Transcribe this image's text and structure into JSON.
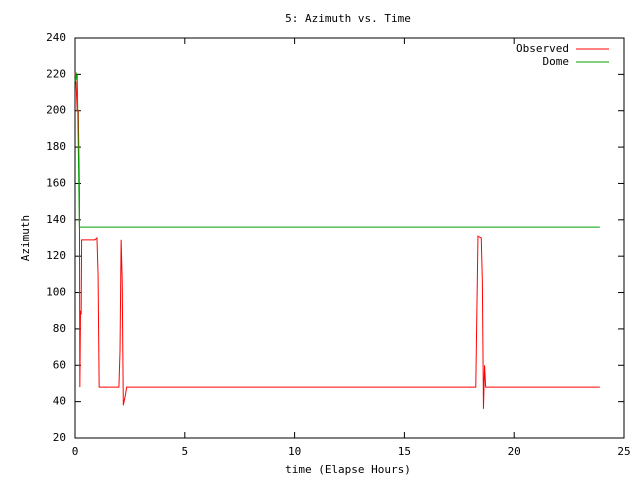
{
  "chart_data": {
    "type": "line",
    "title": "5: Azimuth vs. Time",
    "xlabel": "time (Elapse Hours)",
    "ylabel": "Azimuth",
    "xlim": [
      0,
      25
    ],
    "xticks": [
      0,
      5,
      10,
      15,
      20,
      25
    ],
    "ylim": [
      20,
      240
    ],
    "yticks": [
      20,
      40,
      60,
      80,
      100,
      120,
      140,
      160,
      180,
      200,
      220,
      240
    ],
    "legend": "top-right",
    "series": [
      {
        "name": "Observed",
        "color": "#ff0000",
        "x": [
          0,
          0.05,
          0.1,
          0.15,
          0.2,
          0.22,
          0.25,
          0.28,
          0.3,
          0.9,
          1.0,
          1.05,
          1.1,
          2.0,
          2.05,
          2.1,
          2.15,
          2.2,
          2.3,
          2.35,
          18.25,
          18.3,
          18.35,
          18.5,
          18.55,
          18.6,
          18.65,
          18.7,
          23.9
        ],
        "values": [
          221,
          215,
          200,
          200,
          155,
          48,
          90,
          88,
          129,
          129,
          130,
          110,
          48,
          48,
          68,
          129,
          106,
          38,
          44,
          48,
          48,
          90,
          131,
          130,
          106,
          36,
          60,
          48,
          48
        ]
      },
      {
        "name": "Dome",
        "color": "#00a000",
        "x": [
          0,
          0.05,
          0.08,
          0.1,
          0.15,
          0.2,
          23.9
        ],
        "values": [
          216,
          221,
          217,
          220,
          180,
          136,
          136
        ]
      }
    ]
  }
}
